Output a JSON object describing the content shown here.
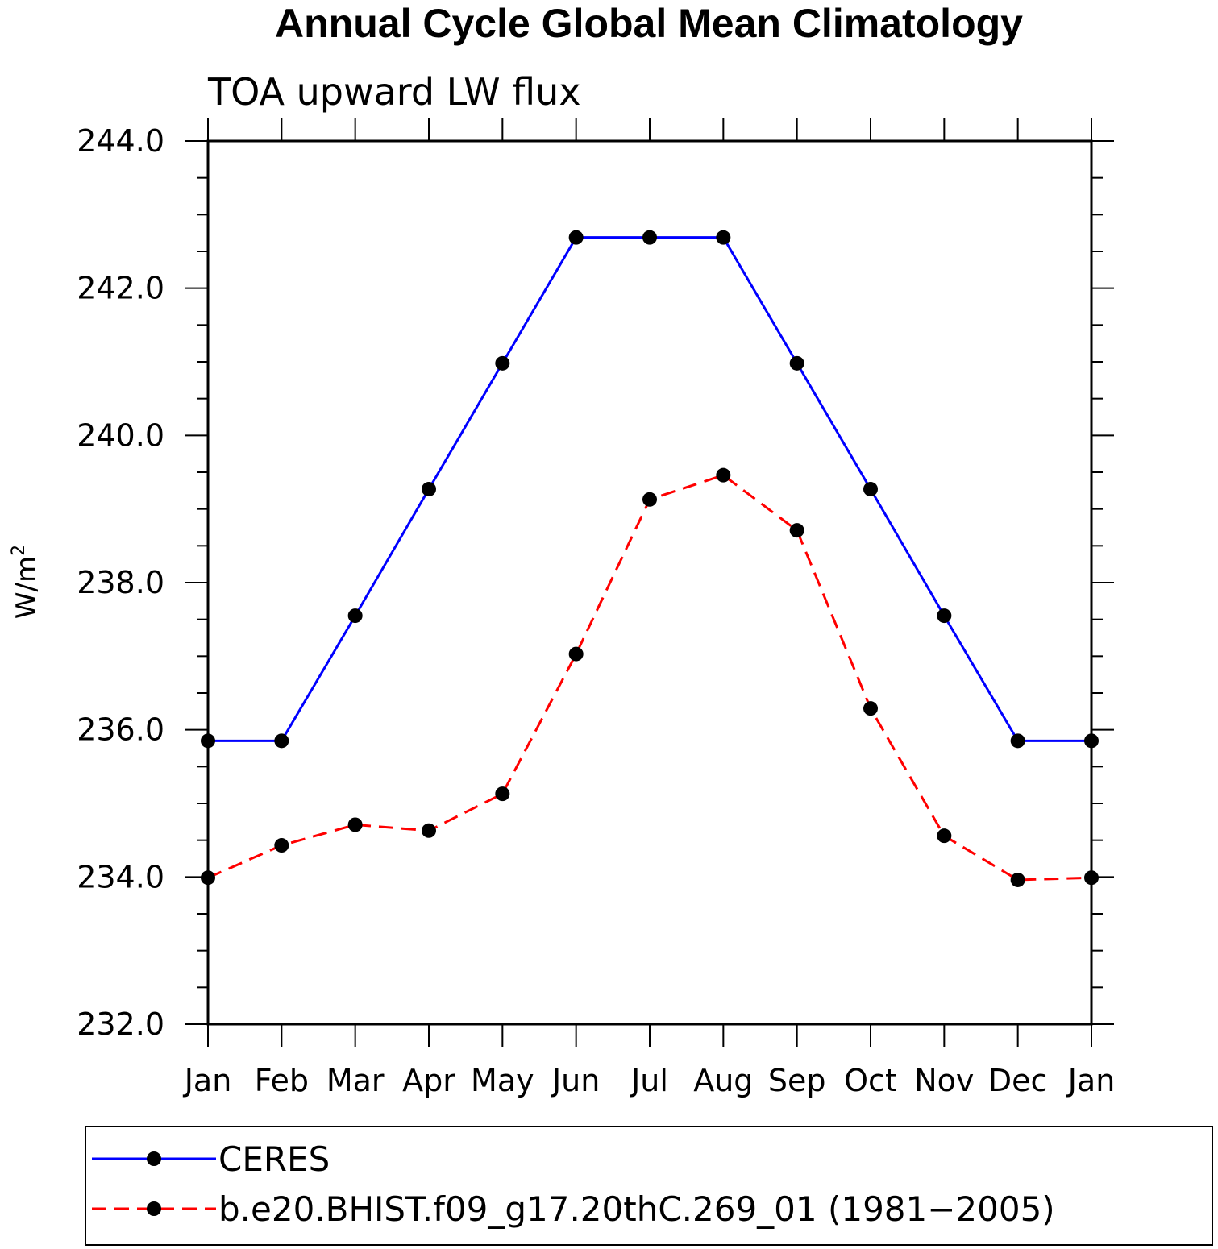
{
  "chart_data": {
    "type": "line",
    "title": "Annual Cycle Global Mean Climatology",
    "subtitle": "TOA upward LW flux",
    "ylabel": "W/m",
    "ylabel_sup": "2",
    "xlabel": "",
    "categories": [
      "Jan",
      "Feb",
      "Mar",
      "Apr",
      "May",
      "Jun",
      "Jul",
      "Aug",
      "Sep",
      "Oct",
      "Nov",
      "Dec",
      "Jan"
    ],
    "ylim": [
      232.0,
      244.0
    ],
    "yticks": [
      "232.0",
      "234.0",
      "236.0",
      "238.0",
      "240.0",
      "242.0",
      "244.0"
    ],
    "grid": false,
    "legend_placement": "bottom",
    "series": [
      {
        "name": "CERES",
        "color": "#0000ff",
        "dash": "solid",
        "marker": "filled-circle",
        "values": [
          235.85,
          235.85,
          237.55,
          239.27,
          240.98,
          242.69,
          242.69,
          242.69,
          240.98,
          239.27,
          237.55,
          235.85,
          235.85
        ]
      },
      {
        "name": "b.e20.BHIST.f09_g17.20thC.269_01 (1981−2005)",
        "color": "#ff0000",
        "dash": "dashed",
        "marker": "filled-circle",
        "values": [
          233.99,
          234.43,
          234.71,
          234.63,
          235.13,
          237.03,
          239.13,
          239.46,
          238.71,
          236.29,
          234.56,
          233.96,
          233.99
        ]
      }
    ]
  }
}
